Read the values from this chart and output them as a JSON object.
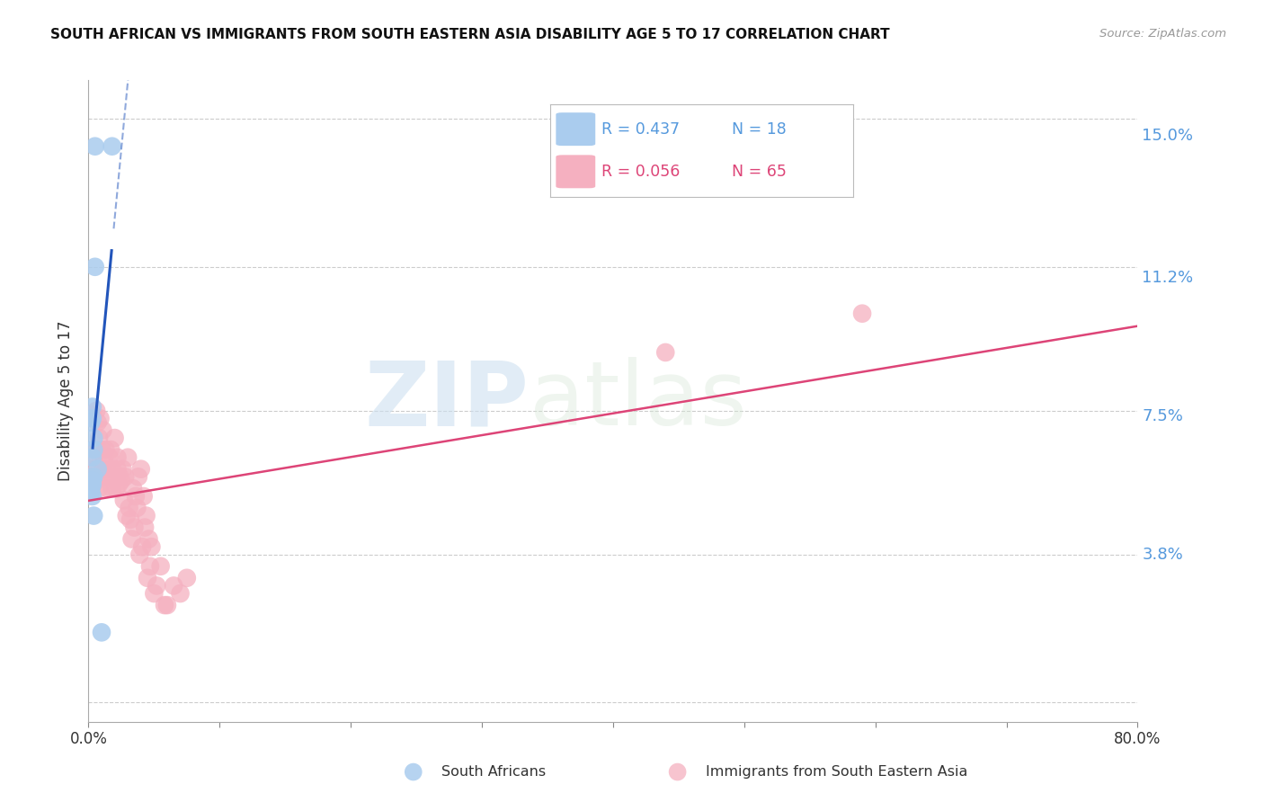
{
  "title": "SOUTH AFRICAN VS IMMIGRANTS FROM SOUTH EASTERN ASIA DISABILITY AGE 5 TO 17 CORRELATION CHART",
  "source": "Source: ZipAtlas.com",
  "ylabel": "Disability Age 5 to 17",
  "xlim": [
    0.0,
    0.8
  ],
  "ylim": [
    -0.005,
    0.16
  ],
  "yticks": [
    0.0,
    0.038,
    0.075,
    0.112,
    0.15
  ],
  "ytick_labels": [
    "",
    "3.8%",
    "7.5%",
    "11.2%",
    "15.0%"
  ],
  "xticks": [
    0.0,
    0.1,
    0.2,
    0.3,
    0.4,
    0.5,
    0.6,
    0.7,
    0.8
  ],
  "xtick_labels": [
    "0.0%",
    "",
    "",
    "",
    "",
    "",
    "",
    "",
    "80.0%"
  ],
  "blue_color": "#aaccee",
  "pink_color": "#f5b0c0",
  "blue_line_color": "#2255bb",
  "pink_line_color": "#dd4477",
  "tick_color": "#5599dd",
  "blue_scatter_x": [
    0.005,
    0.018,
    0.005,
    0.003,
    0.003,
    0.002,
    0.004,
    0.004,
    0.003,
    0.007,
    0.004,
    0.003,
    0.003,
    0.002,
    0.002,
    0.003,
    0.004,
    0.01
  ],
  "blue_scatter_y": [
    0.143,
    0.143,
    0.112,
    0.076,
    0.073,
    0.072,
    0.068,
    0.065,
    0.063,
    0.06,
    0.058,
    0.057,
    0.056,
    0.055,
    0.054,
    0.053,
    0.048,
    0.018
  ],
  "pink_scatter_x": [
    0.002,
    0.003,
    0.004,
    0.004,
    0.005,
    0.006,
    0.006,
    0.007,
    0.008,
    0.008,
    0.009,
    0.01,
    0.011,
    0.011,
    0.012,
    0.013,
    0.013,
    0.014,
    0.015,
    0.016,
    0.016,
    0.017,
    0.018,
    0.018,
    0.019,
    0.02,
    0.021,
    0.022,
    0.022,
    0.023,
    0.024,
    0.025,
    0.026,
    0.027,
    0.028,
    0.029,
    0.03,
    0.031,
    0.032,
    0.033,
    0.034,
    0.035,
    0.036,
    0.037,
    0.038,
    0.039,
    0.04,
    0.041,
    0.042,
    0.043,
    0.044,
    0.045,
    0.046,
    0.047,
    0.048,
    0.05,
    0.052,
    0.055,
    0.058,
    0.06,
    0.065,
    0.07,
    0.075,
    0.44,
    0.59
  ],
  "pink_scatter_y": [
    0.058,
    0.074,
    0.063,
    0.06,
    0.065,
    0.057,
    0.075,
    0.072,
    0.068,
    0.055,
    0.073,
    0.065,
    0.06,
    0.07,
    0.062,
    0.058,
    0.065,
    0.06,
    0.055,
    0.063,
    0.058,
    0.065,
    0.06,
    0.055,
    0.058,
    0.068,
    0.055,
    0.06,
    0.063,
    0.056,
    0.058,
    0.057,
    0.06,
    0.052,
    0.058,
    0.048,
    0.063,
    0.05,
    0.047,
    0.042,
    0.055,
    0.045,
    0.053,
    0.05,
    0.058,
    0.038,
    0.06,
    0.04,
    0.053,
    0.045,
    0.048,
    0.032,
    0.042,
    0.035,
    0.04,
    0.028,
    0.03,
    0.035,
    0.025,
    0.025,
    0.03,
    0.028,
    0.032,
    0.09,
    0.1
  ],
  "watermark_zip": "ZIP",
  "watermark_atlas": "atlas",
  "legend_R_blue": "R = 0.437",
  "legend_N_blue": "N = 18",
  "legend_R_pink": "R = 0.056",
  "legend_N_pink": "N = 65",
  "label_south_africans": "South Africans",
  "label_immigrants": "Immigrants from South Eastern Asia",
  "background_color": "#ffffff",
  "grid_color": "#cccccc"
}
